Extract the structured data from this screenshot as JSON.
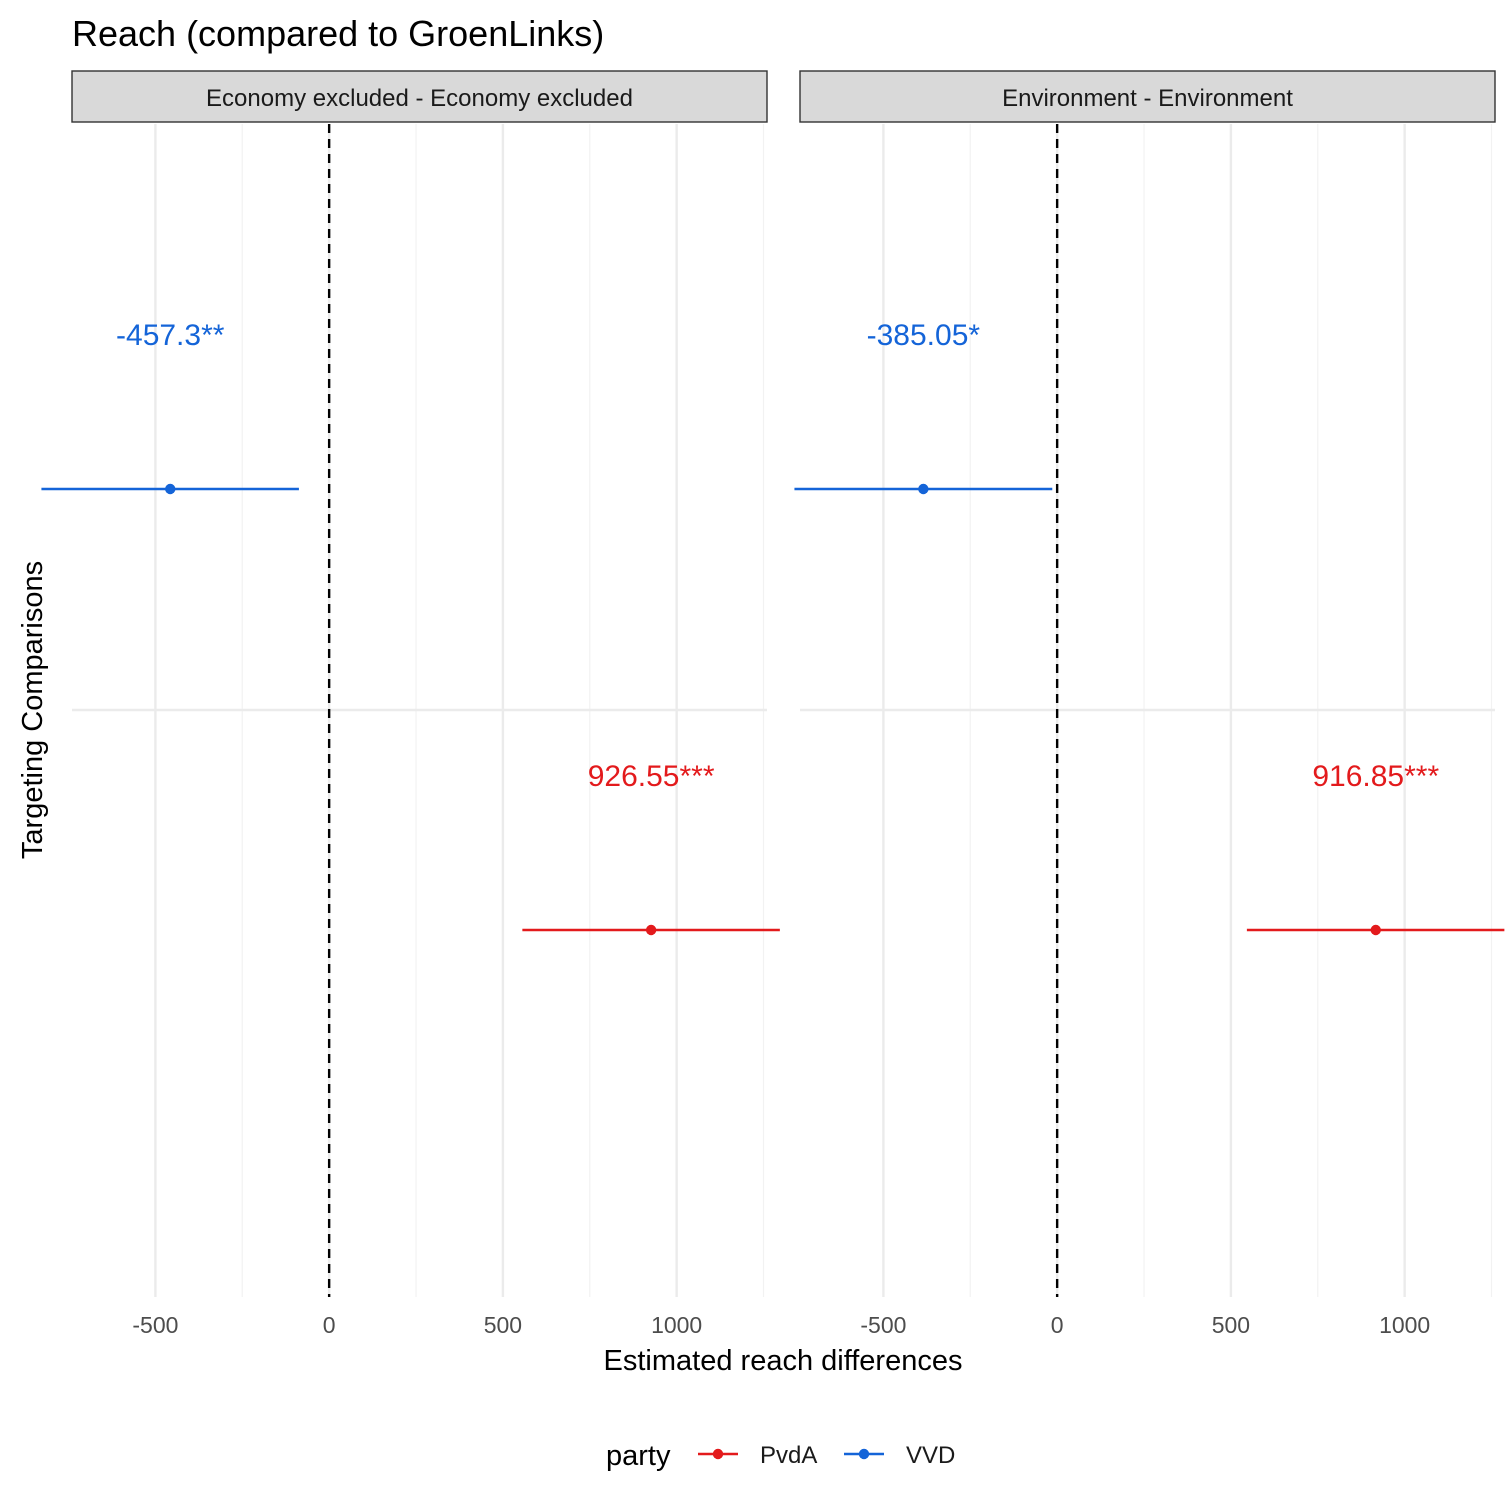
{
  "chart_data": {
    "type": "scatter",
    "title": "Reach (compared to GroenLinks)",
    "xlabel": "Estimated reach differences",
    "ylabel": "Targeting Comparisons",
    "xlim": [
      -740,
      1260
    ],
    "x_ticks": [
      -500,
      0,
      500,
      1000
    ],
    "x_tick_labels": [
      "-500",
      "0",
      "500",
      "1000"
    ],
    "reference_line": 0,
    "grid": true,
    "legend": {
      "title": "party",
      "position": "bottom",
      "entries": [
        {
          "name": "PvdA",
          "color": "#e31a1c"
        },
        {
          "name": "VVD",
          "color": "#1464d8"
        }
      ]
    },
    "facets": [
      {
        "label": "Economy excluded  - Economy excluded",
        "points": [
          {
            "party": "VVD",
            "estimate": -457.3,
            "ci_low": -828,
            "ci_high": -87,
            "label": "-457.3**"
          },
          {
            "party": "PvdA",
            "estimate": 926.55,
            "ci_low": 556,
            "ci_high": 1297,
            "label": "926.55***"
          }
        ]
      },
      {
        "label": "Environment  - Environment",
        "points": [
          {
            "party": "VVD",
            "estimate": -385.05,
            "ci_low": -756,
            "ci_high": -14,
            "label": "-385.05*"
          },
          {
            "party": "PvdA",
            "estimate": 916.85,
            "ci_low": 546,
            "ci_high": 1287,
            "label": "916.85***"
          }
        ]
      }
    ]
  }
}
